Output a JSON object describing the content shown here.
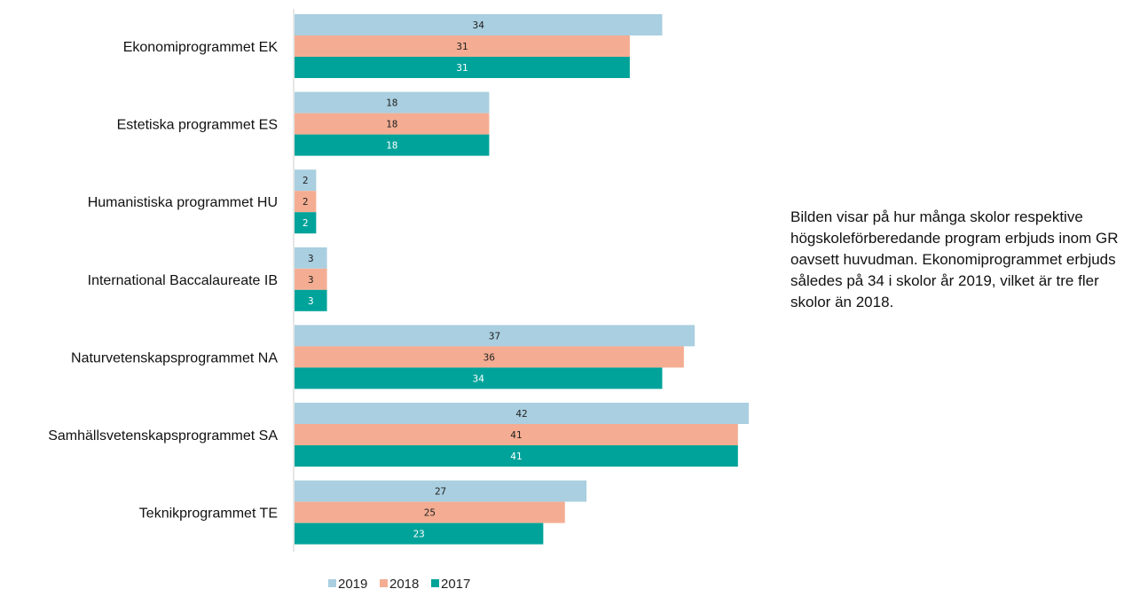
{
  "chart_data": {
    "type": "bar",
    "orientation": "horizontal",
    "categories": [
      "Ekonomiprogrammet EK",
      "Estetiska programmet ES",
      "Humanistiska programmet HU",
      "International Baccalaureate IB",
      "Naturvetenskapsprogrammet NA",
      "Samhällsvetenskapsprogrammet SA",
      "Teknikprogrammet TE"
    ],
    "series": [
      {
        "name": "2019",
        "color": "#a9cfe0",
        "label_color": "#222222",
        "values": [
          34,
          18,
          2,
          3,
          37,
          42,
          27
        ]
      },
      {
        "name": "2018",
        "color": "#f4ad92",
        "label_color": "#222222",
        "values": [
          31,
          18,
          2,
          3,
          36,
          41,
          25
        ]
      },
      {
        "name": "2017",
        "color": "#00a39a",
        "label_color": "#ffffff",
        "values": [
          31,
          18,
          2,
          3,
          34,
          41,
          23
        ]
      }
    ],
    "xlim": [
      0,
      42
    ],
    "grid": false,
    "data_labels": true,
    "legend_position": "bottom",
    "title": "",
    "xlabel": "",
    "ylabel": ""
  },
  "caption": "Bilden visar på hur många skolor respektive högskoleförberedande program erbjuds inom GR oavsett huvudman. Ekonomiprogrammet erbjuds således på 34 i skolor år 2019, vilket är tre fler skolor än 2018."
}
